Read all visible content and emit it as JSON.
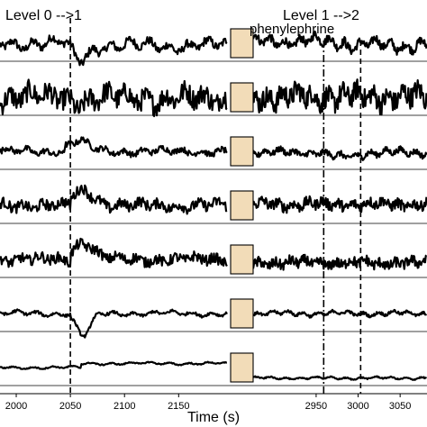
{
  "chart_data": {
    "type": "line",
    "title": "",
    "xlabel": "Time (s)",
    "ylabel": "",
    "grid": false,
    "annotations": {
      "level_0_to_1": "Level 0 -->1",
      "level_1_to_2": "Level 1 -->2",
      "drug": "phenylephrine"
    },
    "left_panel": {
      "xlim": [
        1985,
        2198
      ],
      "ticks": [
        2000,
        2050,
        2100,
        2150
      ],
      "tick_labels": [
        "2000",
        "2050",
        "2100",
        "2150"
      ]
    },
    "right_panel": {
      "xlim": [
        2875,
        3082
      ],
      "ticks": [
        2950,
        3000,
        3050
      ],
      "tick_labels": [
        "2950",
        "3000",
        "3050"
      ]
    },
    "markers": {
      "level_0_to_1_time": 2050,
      "level_1_to_2_times": [
        2959,
        3003
      ]
    },
    "drug_block_color": "#f2dcb8",
    "traces": [
      {
        "index": 1,
        "noise": 0.85,
        "jitter": 0.35,
        "drop_after_transition": 0.55,
        "dip_at": 2055,
        "dip_depth": 0.9,
        "late_level": 0.15
      },
      {
        "index": 2,
        "noise": 1.0,
        "jitter": 0.9,
        "drop_after_transition": 0.2,
        "dip_at": 2055,
        "dip_depth": 0.3,
        "late_level": 0.05
      },
      {
        "index": 3,
        "noise": 0.45,
        "jitter": 0.25,
        "drop_after_transition": 0.0,
        "bump_at": 2055,
        "bump_height": 0.6,
        "late_level": -0.1
      },
      {
        "index": 4,
        "noise": 0.5,
        "jitter": 0.45,
        "drop_after_transition": 0.0,
        "bump_at": 2060,
        "bump_height": 0.9,
        "late_level": 0.1
      },
      {
        "index": 5,
        "noise": 0.45,
        "jitter": 0.45,
        "drop_after_transition": 0.0,
        "bump_at": 2060,
        "bump_height": 1.0,
        "late_level": -0.3
      },
      {
        "index": 6,
        "noise": 0.35,
        "jitter": 0.12,
        "drop_after_transition": 0.0,
        "dip_at": 2058,
        "dip_depth": 1.2,
        "late_level": 0.0
      },
      {
        "index": 7,
        "noise": 0.18,
        "jitter": 0.05,
        "drop_after_transition": 0.0,
        "step_at": 2060,
        "step_height": 0.35,
        "late_level": -0.9
      }
    ]
  }
}
